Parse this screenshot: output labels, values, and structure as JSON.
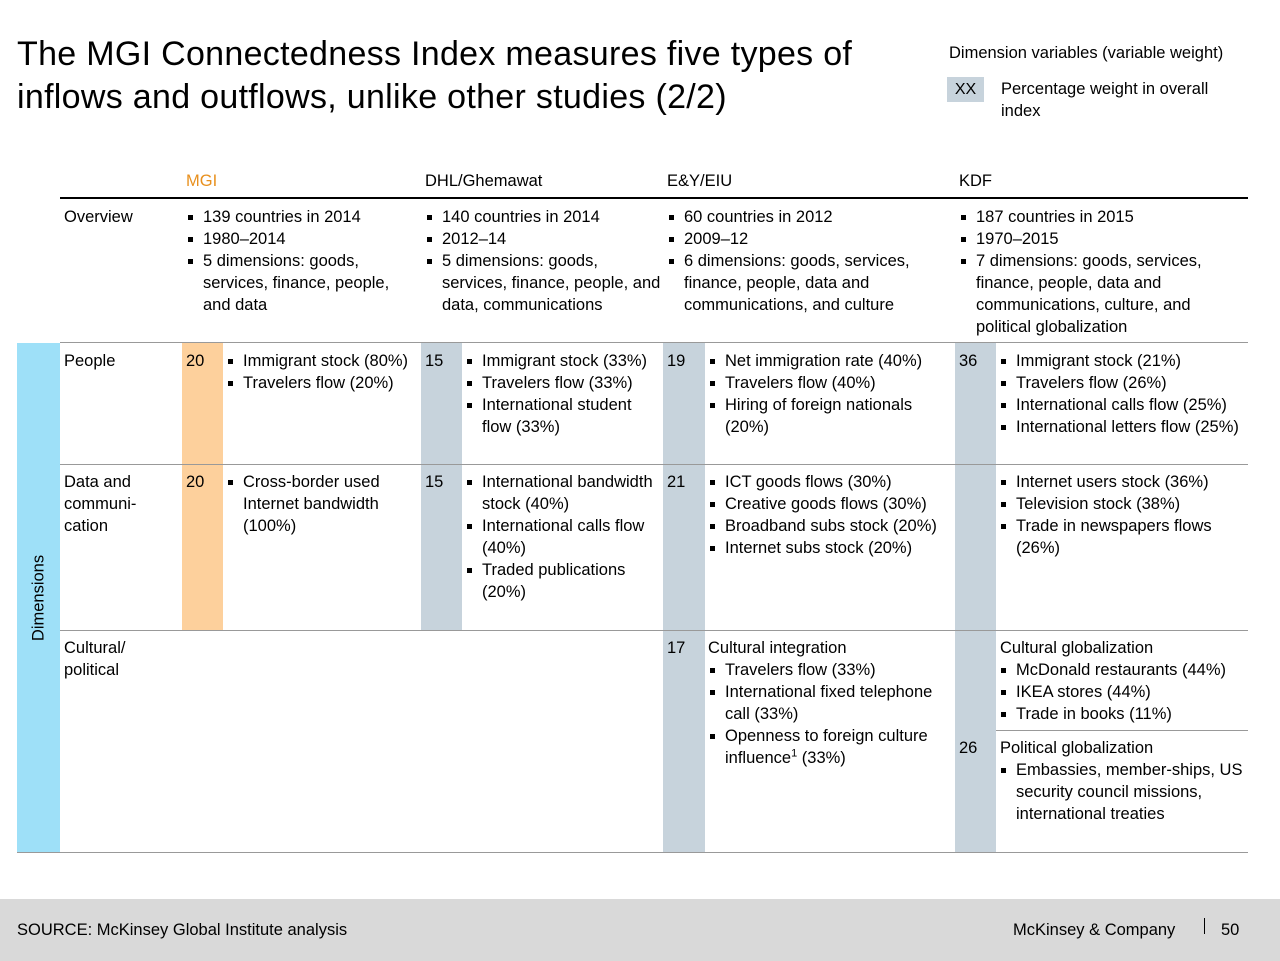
{
  "title": "The MGI Connectedness Index measures five types of inflows and outflows, unlike other studies (2/2)",
  "legend": {
    "heading": "Dimension variables (variable weight)",
    "box_label": "XX",
    "box_desc": "Percentage weight in overall index"
  },
  "columns": {
    "mgi": "MGI",
    "dhl": "DHL/Ghemawat",
    "ey": "E&Y/EIU",
    "kdf": "KDF"
  },
  "rows": {
    "overview": "Overview",
    "people": "People",
    "data": "Data and communi-cation",
    "cultural": "Cultural/ political"
  },
  "dimensions_label": "Dimensions",
  "overview": {
    "mgi": [
      "139 countries in 2014",
      "1980–2014",
      "5 dimensions: goods, services, finance, people, and data"
    ],
    "dhl": [
      "140 countries in 2014",
      "2012–14",
      "5 dimensions: goods, services, finance, people, and data, communications"
    ],
    "ey": [
      "60 countries in 2012",
      "2009–12",
      "6 dimensions: goods, services, finance, people, data and communications, and culture"
    ],
    "kdf": [
      "187 countries in 2015",
      "1970–2015",
      "7 dimensions: goods, services, finance, people, data and communications, culture, and political globalization"
    ]
  },
  "people": {
    "mgi_weight": "20",
    "mgi": [
      "Immigrant stock (80%)",
      "Travelers flow (20%)"
    ],
    "dhl_weight": "15",
    "dhl": [
      "Immigrant stock (33%)",
      "Travelers flow (33%)",
      "International student flow (33%)"
    ],
    "ey_weight": "19",
    "ey": [
      "Net immigration rate (40%)",
      "Travelers flow (40%)",
      "Hiring of foreign nationals (20%)"
    ],
    "kdf_weight": "36",
    "kdf": [
      "Immigrant stock (21%)",
      "Travelers flow (26%)",
      "International calls flow (25%)",
      "International letters flow (25%)"
    ]
  },
  "data": {
    "mgi_weight": "20",
    "mgi": [
      "Cross-border used Internet bandwidth (100%)"
    ],
    "dhl_weight": "15",
    "dhl": [
      "International bandwidth stock (40%)",
      "International calls flow (40%)",
      "Traded publications (20%)"
    ],
    "ey_weight": "21",
    "ey": [
      "ICT goods flows (30%)",
      "Creative goods flows (30%)",
      "Broadband subs stock (20%)",
      "Internet subs stock (20%)"
    ],
    "kdf": [
      "Internet users stock (36%)",
      "Television stock (38%)",
      "Trade in newspapers flows (26%)"
    ]
  },
  "cultural": {
    "ey_weight": "17",
    "ey_heading": "Cultural integration",
    "ey": [
      "Travelers flow (33%)",
      "International fixed telephone call (33%)"
    ],
    "ey_last_a": "Openness to foreign culture influence",
    "ey_last_sup": "1",
    "ey_last_b": " (33%)",
    "kdf_cult_heading": "Cultural globalization",
    "kdf_cult": [
      "McDonald restaurants (44%)",
      "IKEA stores (44%)",
      "Trade in books (11%)"
    ],
    "kdf_pol_weight": "26",
    "kdf_pol_heading": "Political globalization",
    "kdf_pol": [
      "Embassies, member-ships, US security council missions, international treaties"
    ]
  },
  "footer": {
    "source": "SOURCE: McKinsey Global Institute analysis",
    "brand": "McKinsey & Company",
    "page": "50"
  },
  "colors": {
    "mgi_accent": "#e8901e",
    "mgi_band": "#fdd09c",
    "grey_band": "#c7d3dc",
    "dimension_band": "#9ee0f8"
  }
}
